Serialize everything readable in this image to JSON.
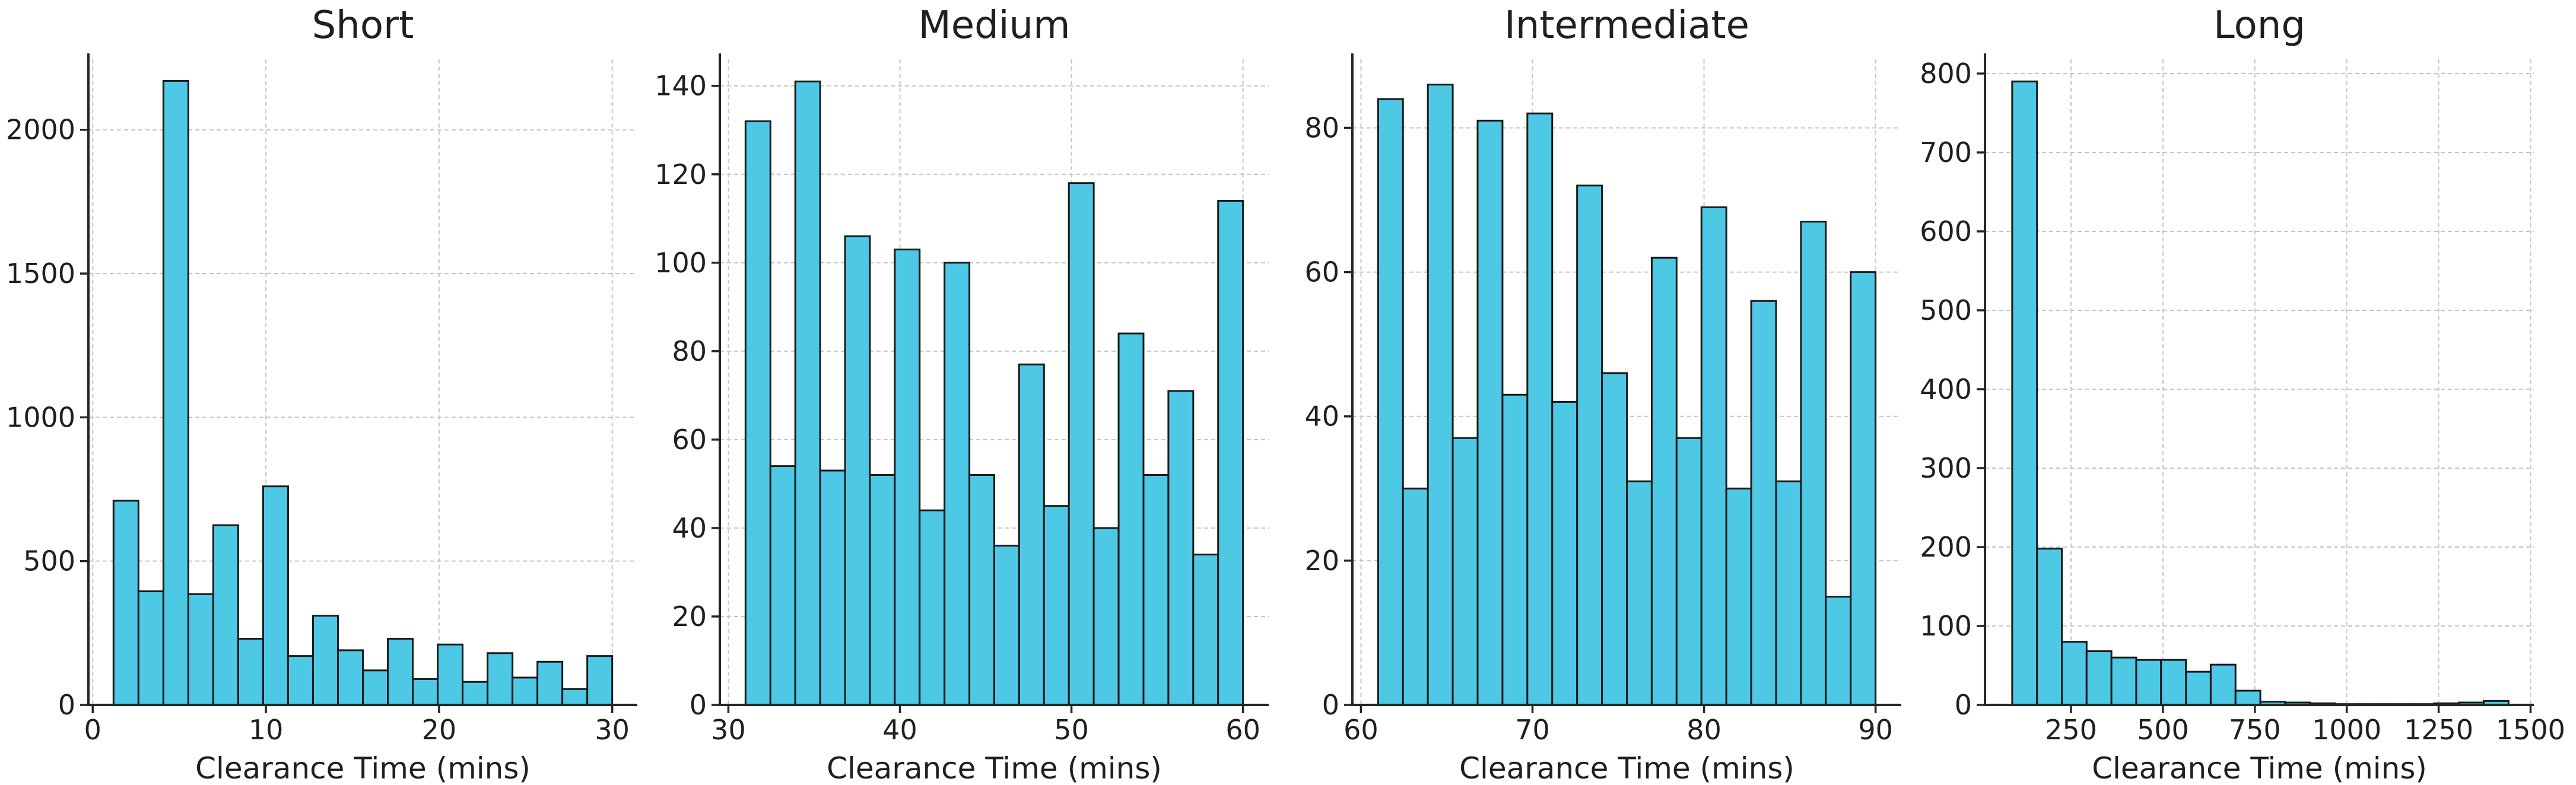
{
  "figure": {
    "background": "#ffffff",
    "bar_fill": "#4dc9e6",
    "bar_edge": "#1a1a1a",
    "grid_color": "#c6c6c6",
    "spine_color": "#262626",
    "text_color": "#1f1f1f",
    "shared_xlabel": "Clearance Time (mins)"
  },
  "chart_data": [
    {
      "type": "bar",
      "subtype": "histogram",
      "title": "Short",
      "xlabel": "Clearance Time (mins)",
      "ylabel": "",
      "bin_start": 1.2,
      "bin_width": 1.44,
      "values": [
        710,
        395,
        2170,
        385,
        625,
        230,
        760,
        170,
        310,
        190,
        120,
        230,
        90,
        210,
        80,
        180,
        95,
        150,
        55,
        170
      ],
      "xticks": [
        0,
        10,
        20,
        30
      ],
      "yticks": [
        0,
        500,
        1000,
        1500,
        2000
      ],
      "xlim": [
        -0.25,
        31.45
      ],
      "ylim": [
        0,
        2245
      ],
      "grid": true,
      "legend": false
    },
    {
      "type": "bar",
      "subtype": "histogram",
      "title": "Medium",
      "xlabel": "Clearance Time (mins)",
      "ylabel": "",
      "bin_start": 31.0,
      "bin_width": 1.45,
      "values": [
        132,
        54,
        141,
        53,
        106,
        52,
        103,
        44,
        100,
        52,
        36,
        77,
        45,
        118,
        40,
        84,
        52,
        71,
        34,
        114
      ],
      "xticks": [
        30,
        40,
        50,
        60
      ],
      "yticks": [
        0,
        20,
        40,
        60,
        80,
        100,
        120,
        140
      ],
      "xlim": [
        29.5,
        61.5
      ],
      "ylim": [
        0,
        146
      ],
      "grid": true,
      "legend": false
    },
    {
      "type": "bar",
      "subtype": "histogram",
      "title": "Intermediate",
      "xlabel": "Clearance Time (mins)",
      "ylabel": "",
      "bin_start": 61.0,
      "bin_width": 1.45,
      "values": [
        84,
        30,
        86,
        37,
        81,
        43,
        82,
        42,
        72,
        46,
        31,
        62,
        37,
        69,
        30,
        56,
        31,
        67,
        15,
        60
      ],
      "xticks": [
        60,
        70,
        80,
        90
      ],
      "yticks": [
        0,
        20,
        40,
        60,
        80
      ],
      "xlim": [
        59.5,
        91.5
      ],
      "ylim": [
        0,
        89.5
      ],
      "grid": true,
      "legend": false
    },
    {
      "type": "bar",
      "subtype": "histogram",
      "title": "Long",
      "xlabel": "Clearance Time (mins)",
      "ylabel": "",
      "bin_start": 90,
      "bin_width": 67.5,
      "values": [
        790,
        198,
        80,
        68,
        60,
        57,
        57,
        42,
        51,
        18,
        4,
        3,
        2,
        1,
        1,
        1,
        1,
        2,
        3,
        5
      ],
      "xticks": [
        250,
        500,
        750,
        1000,
        1250,
        1500
      ],
      "yticks": [
        0,
        100,
        200,
        300,
        400,
        500,
        600,
        700,
        800
      ],
      "xlim": [
        16,
        1509
      ],
      "ylim": [
        0,
        818
      ],
      "grid": true,
      "legend": false
    }
  ]
}
